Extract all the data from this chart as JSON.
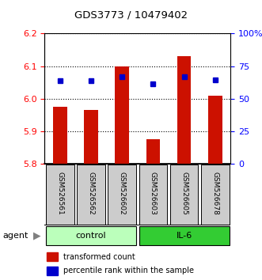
{
  "title": "GDS3773 / 10479402",
  "samples": [
    "GSM526561",
    "GSM526562",
    "GSM526602",
    "GSM526603",
    "GSM526605",
    "GSM526678"
  ],
  "bar_values": [
    5.975,
    5.965,
    6.1,
    5.875,
    6.13,
    6.01
  ],
  "percentile_values": [
    6.055,
    6.055,
    6.068,
    6.045,
    6.068,
    6.058
  ],
  "y_min": 5.8,
  "y_max": 6.2,
  "y_ticks_left": [
    5.8,
    5.9,
    6.0,
    6.1,
    6.2
  ],
  "y_ticks_right_labels": [
    "0",
    "25",
    "50",
    "75",
    "100%"
  ],
  "bar_color": "#CC1100",
  "percentile_color": "#0000CC",
  "n_control": 3,
  "n_il6": 3,
  "control_color": "#BBFFBB",
  "il6_color": "#33CC33",
  "sample_box_color": "#CCCCCC",
  "legend_bar_label": "transformed count",
  "legend_pct_label": "percentile rank within the sample",
  "agent_label": "agent",
  "control_label": "control",
  "il6_label": "IL-6"
}
